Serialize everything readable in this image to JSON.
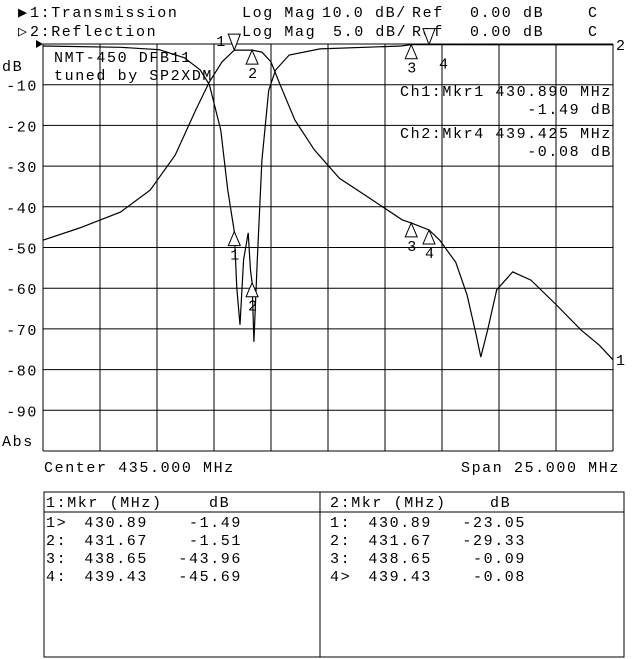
{
  "header": {
    "ch1": {
      "marker": "▶",
      "name": "1:Transmission",
      "format": "Log Mag",
      "scale": "10.0 dB/",
      "ref_label": "Ref",
      "ref_value": "0.00 dB",
      "flag": "C"
    },
    "ch2": {
      "marker": "▷",
      "name": "2:Reflection",
      "format": "Log Mag",
      "scale": "5.0 dB/",
      "ref_label": "Ref",
      "ref_value": "0.00 dB",
      "flag": "C"
    }
  },
  "annotation": {
    "line1": "NMT-450 DFB11",
    "line2": "tuned by SP2XDM"
  },
  "active_markers": {
    "ch1": {
      "label": "Ch1:Mkr1",
      "freq": "430.890 MHz",
      "value": "-1.49 dB"
    },
    "ch2": {
      "label": "Ch2:Mkr4",
      "freq": "439.425 MHz",
      "value": "-0.08 dB"
    }
  },
  "y_axis": {
    "unit": "dB",
    "ticks": [
      "-10",
      "-20",
      "-30",
      "-40",
      "-50",
      "-60",
      "-70",
      "-80",
      "-90"
    ],
    "mode": "Abs"
  },
  "footer": {
    "center": "Center 435.000 MHz",
    "span": "Span 25.000 MHz"
  },
  "trace_end_labels": {
    "ch1": "1",
    "ch2": "2"
  },
  "marker_table": {
    "ch1": {
      "header_mkr": "1:Mkr (MHz)",
      "header_db": "dB",
      "rows": [
        {
          "id": "1>",
          "freq": "430.89",
          "db": "-1.49"
        },
        {
          "id": "2:",
          "freq": "431.67",
          "db": "-1.51"
        },
        {
          "id": "3:",
          "freq": "438.65",
          "db": "-43.96"
        },
        {
          "id": "4:",
          "freq": "439.43",
          "db": "-45.69"
        }
      ]
    },
    "ch2": {
      "header_mkr": "2:Mkr (MHz)",
      "header_db": "dB",
      "rows": [
        {
          "id": "1:",
          "freq": "430.89",
          "db": "-23.05"
        },
        {
          "id": "2:",
          "freq": "431.67",
          "db": "-29.33"
        },
        {
          "id": "3:",
          "freq": "438.65",
          "db": "-0.09"
        },
        {
          "id": "4>",
          "freq": "439.43",
          "db": "-0.08"
        }
      ]
    }
  },
  "chart_data": {
    "type": "line",
    "x_unit": "MHz",
    "xlim": [
      422.5,
      447.5
    ],
    "grid": true,
    "series": [
      {
        "name": "1:Transmission",
        "ylim": [
          -100,
          0
        ],
        "x": [
          422.5,
          424.1,
          425.9,
          427.2,
          428.3,
          429.2,
          429.8,
          430.35,
          430.89,
          431.67,
          432.1,
          432.5,
          432.9,
          433.55,
          434.4,
          435.5,
          436.8,
          438.25,
          438.65,
          439.43,
          439.9,
          440.6,
          441.1,
          441.5,
          441.7,
          442.0,
          442.4,
          443.1,
          443.9,
          445.0,
          446.1,
          446.9,
          447.5
        ],
        "y": [
          -48.2,
          -45.2,
          -41.3,
          -35.9,
          -27.3,
          -16.2,
          -9.3,
          -4.4,
          -1.49,
          -1.51,
          -2.0,
          -4.4,
          -10,
          -18.7,
          -26,
          -33,
          -37.8,
          -43.2,
          -43.96,
          -45.69,
          -48.2,
          -53.6,
          -61.7,
          -71.5,
          -76.9,
          -70.3,
          -60.4,
          -56,
          -58,
          -64,
          -70.3,
          -74,
          -77.6
        ]
      },
      {
        "name": "2:Reflection",
        "ylim": [
          -50,
          0
        ],
        "x": [
          422.5,
          425.9,
          427.6,
          428.7,
          429.4,
          429.8,
          430.3,
          430.6,
          430.89,
          431.0,
          431.14,
          431.3,
          431.5,
          431.6,
          431.67,
          431.75,
          431.9,
          432.1,
          432.4,
          432.7,
          433.3,
          434.65,
          438.2,
          438.65,
          439.43,
          447.5
        ],
        "y": [
          -0.25,
          -0.4,
          -0.7,
          -1.7,
          -3.2,
          -5.0,
          -10.6,
          -17.9,
          -23.05,
          -30,
          -34.5,
          -26.5,
          -23.2,
          -27.8,
          -29.33,
          -36.6,
          -26.5,
          -14.3,
          -5.7,
          -3.2,
          -1.35,
          -0.6,
          -0.25,
          -0.09,
          -0.08,
          -0.1
        ]
      }
    ],
    "markers": [
      {
        "id": "1",
        "freq": 430.89
      },
      {
        "id": "2",
        "freq": 431.67
      },
      {
        "id": "3",
        "freq": 438.65
      },
      {
        "id": "4",
        "freq": 439.43
      }
    ]
  }
}
